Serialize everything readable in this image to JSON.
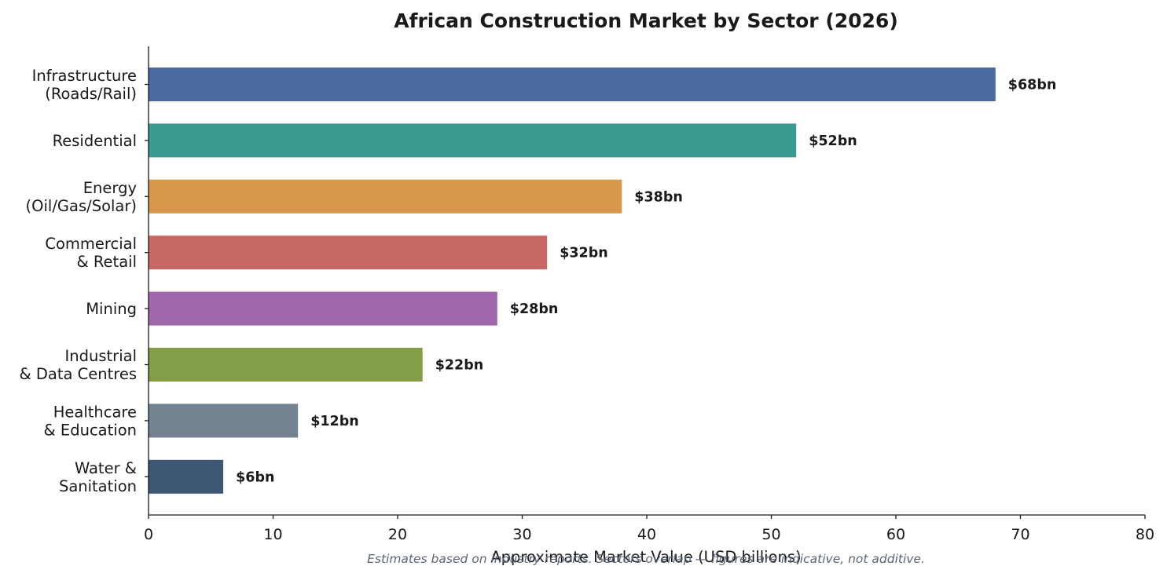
{
  "chart_data": {
    "type": "bar",
    "orientation": "horizontal",
    "title": "African Construction Market by Sector (2026)",
    "xlabel": "Approximate Market Value (USD billions)",
    "ylabel": "",
    "xlim": [
      0,
      80
    ],
    "xticks": [
      0,
      10,
      20,
      30,
      40,
      50,
      60,
      70,
      80
    ],
    "grid": false,
    "legend": "none",
    "categories": [
      [
        "Infrastructure",
        "(Roads/Rail)"
      ],
      [
        "Residential"
      ],
      [
        "Energy",
        "(Oil/Gas/Solar)"
      ],
      [
        "Commercial",
        "& Retail"
      ],
      [
        "Mining"
      ],
      [
        "Industrial",
        "& Data Centres"
      ],
      [
        "Healthcare",
        "& Education"
      ],
      [
        "Water &",
        "Sanitation"
      ]
    ],
    "values": [
      68,
      52,
      38,
      32,
      28,
      22,
      12,
      6
    ],
    "value_labels": [
      "$68bn",
      "$52bn",
      "$38bn",
      "$32bn",
      "$28bn",
      "$22bn",
      "$12bn",
      "$6bn"
    ],
    "colors": [
      "#4b6b9f",
      "#3b9a8f",
      "#d9974c",
      "#c86966",
      "#a066ab",
      "#829e46",
      "#738191",
      "#3e5775"
    ],
    "footnote": "Estimates based on industry reports. Sectors overlap — figures are indicative, not additive."
  }
}
